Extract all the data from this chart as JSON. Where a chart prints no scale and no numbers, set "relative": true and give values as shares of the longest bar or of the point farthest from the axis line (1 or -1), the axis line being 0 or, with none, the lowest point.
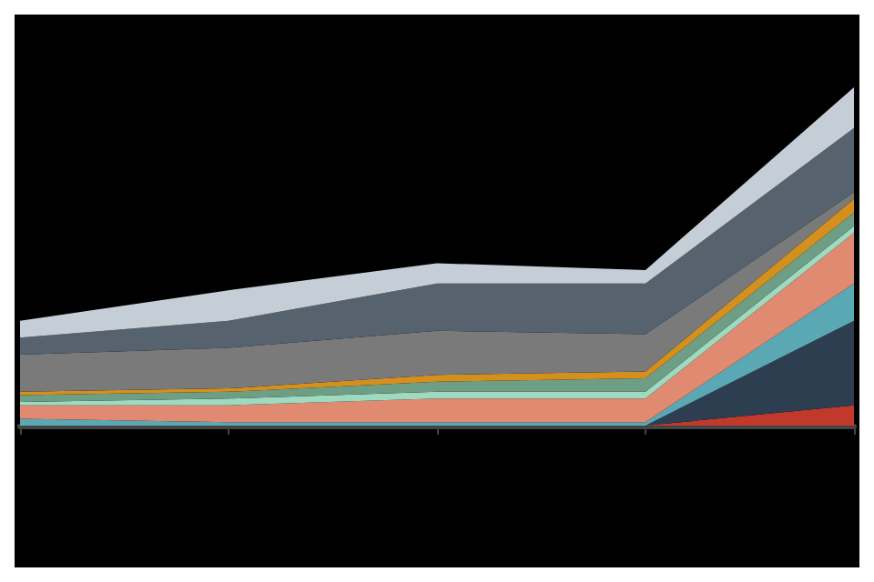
{
  "chart_data": {
    "type": "area",
    "stacked": true,
    "relative": true,
    "categories": [
      null,
      null,
      null,
      null,
      null
    ],
    "series": [
      {
        "color": "#c0392b",
        "values": [
          0,
          0,
          0,
          0,
          0.06
        ]
      },
      {
        "color": "#2c3e50",
        "values": [
          0,
          0,
          0,
          0,
          0.25
        ]
      },
      {
        "color": "#5aa8b4",
        "values": [
          0.02,
          0.01,
          0.01,
          0.01,
          0.11
        ]
      },
      {
        "color": "#e08a72",
        "values": [
          0.04,
          0.05,
          0.07,
          0.07,
          0.15
        ]
      },
      {
        "color": "#9ed9c0",
        "values": [
          0.01,
          0.02,
          0.02,
          0.02,
          0.02
        ]
      },
      {
        "color": "#6e9e86",
        "values": [
          0.02,
          0.02,
          0.03,
          0.04,
          0.04
        ]
      },
      {
        "color": "#d4901e",
        "values": [
          0.01,
          0.01,
          0.02,
          0.02,
          0.04
        ]
      },
      {
        "color": "#7a7a7a",
        "values": [
          0.11,
          0.12,
          0.13,
          0.11,
          0.02
        ]
      },
      {
        "color": "#56636e",
        "values": [
          0.05,
          0.08,
          0.14,
          0.15,
          0.19
        ]
      },
      {
        "color": "#c5ced6",
        "values": [
          0.05,
          0.09,
          0.06,
          0.04,
          0.12
        ]
      }
    ]
  }
}
